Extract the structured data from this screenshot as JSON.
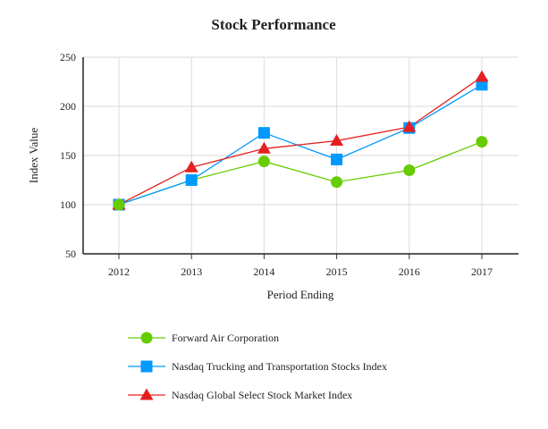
{
  "chart_data": {
    "type": "line",
    "title": "Stock Performance",
    "xlabel": "Period Ending",
    "ylabel": "Index Value",
    "categories": [
      "2012",
      "2013",
      "2014",
      "2015",
      "2016",
      "2017"
    ],
    "ylim": [
      50,
      250
    ],
    "yticks": [
      50,
      100,
      150,
      200,
      250
    ],
    "grid": true,
    "legend_placement": "bottom",
    "series": [
      {
        "name": "Forward Air Corporation",
        "color": "#66cc00",
        "marker": "circle",
        "values": [
          100,
          125,
          144,
          123,
          135,
          164
        ]
      },
      {
        "name": "Nasdaq Trucking and Transportation Stocks Index",
        "color": "#0099ff",
        "marker": "square",
        "values": [
          100,
          125,
          173,
          146,
          178,
          222
        ]
      },
      {
        "name": "Nasdaq Global Select Stock Market Index",
        "color": "#e62020",
        "marker": "triangle",
        "values": [
          100,
          138,
          157,
          165,
          179,
          230
        ]
      }
    ]
  }
}
